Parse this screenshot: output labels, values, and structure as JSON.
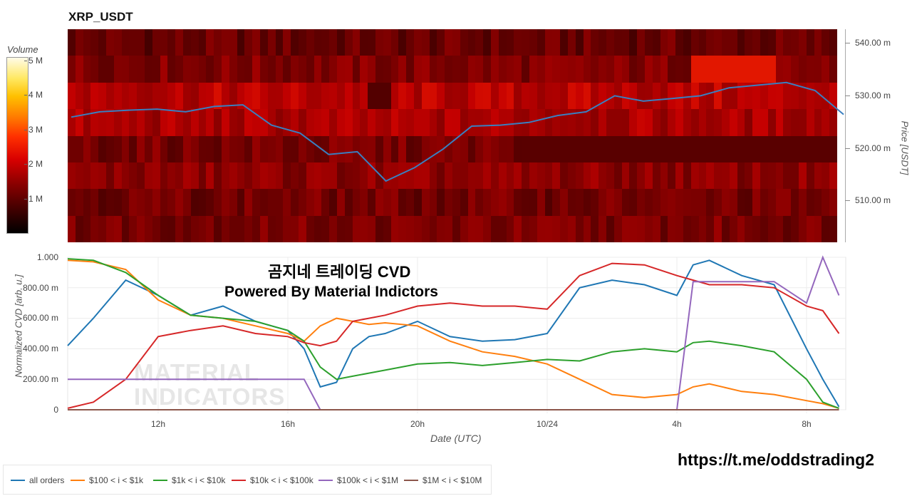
{
  "title": "XRP_USDT",
  "overlay_text": {
    "line1": "곰지네 트레이딩 CVD",
    "line2": "Powered By Material Indictors"
  },
  "url_text": "https://t.me/oddstrading2",
  "watermark": {
    "line1": "MATERIAL",
    "line2": "INDICATORS"
  },
  "colorbar": {
    "title": "Volume",
    "ticks": [
      "5 M",
      "4 M",
      "3 M",
      "2 M",
      "1 M"
    ]
  },
  "colors": {
    "price_line": "#3a7fc0",
    "all_orders": "#1f77b4",
    "r100_1k": "#ff7f0e",
    "r1k_10k": "#2ca02c",
    "r10k_100k": "#d62728",
    "r100k_1m": "#9467bd",
    "r1m_10m": "#8c564b"
  },
  "chart_data": [
    {
      "type": "heatmap",
      "title": "XRP_USDT",
      "ylabel": "Price [USDT]",
      "y_ticks": [
        "540.00 m",
        "530.00 m",
        "520.00 m",
        "510.00 m"
      ],
      "y_tick_values": [
        0.54,
        0.53,
        0.52,
        0.51
      ],
      "ylim": [
        0.502,
        0.542
      ],
      "colorbar_label": "Volume",
      "colorbar_ticks": [
        "5 M",
        "4 M",
        "3 M",
        "2 M",
        "1 M"
      ],
      "price_series": {
        "x": [
          "2023-10-23 09:00",
          "10:00",
          "11:00",
          "12:00",
          "13:00",
          "14:00",
          "15:00",
          "16:00",
          "16:30",
          "17:00",
          "17:30",
          "18:00",
          "18:30",
          "19:00",
          "20:00",
          "21:00",
          "22:00",
          "23:00",
          "10/24 00:00",
          "01:00",
          "02:00",
          "03:00",
          "04:00",
          "05:00",
          "06:00",
          "07:00",
          "08:00",
          "09:00"
        ],
        "y": [
          0.5255,
          0.5265,
          0.5268,
          0.527,
          0.5265,
          0.5275,
          0.5278,
          0.524,
          0.5225,
          0.5185,
          0.519,
          0.5135,
          0.516,
          0.5195,
          0.5238,
          0.524,
          0.5245,
          0.5258,
          0.5265,
          0.5295,
          0.5285,
          0.529,
          0.5295,
          0.531,
          0.5315,
          0.532,
          0.5305,
          0.526
        ]
      }
    },
    {
      "type": "line",
      "xlabel": "Date (UTC)",
      "ylabel": "Normalized CVD [arb. u.]",
      "y_ticks": [
        "1.000",
        "800.00 m",
        "600.00 m",
        "400.00 m",
        "200.00 m",
        "0"
      ],
      "ylim": [
        0,
        1
      ],
      "x_ticks": [
        "12h",
        "16h",
        "20h",
        "10/24",
        "4h",
        "8h"
      ],
      "x": [
        9,
        10,
        11,
        12,
        13,
        14,
        15,
        16,
        16.5,
        17,
        17.5,
        18,
        18.5,
        19,
        20,
        21,
        22,
        23,
        24,
        25,
        26,
        27,
        28,
        28.5,
        29,
        30,
        31,
        32,
        32.5,
        33
      ],
      "series": [
        {
          "name": "all orders",
          "values": [
            0.42,
            0.6,
            0.85,
            0.75,
            0.62,
            0.68,
            0.58,
            0.52,
            0.4,
            0.15,
            0.18,
            0.4,
            0.48,
            0.5,
            0.58,
            0.48,
            0.45,
            0.46,
            0.5,
            0.8,
            0.85,
            0.82,
            0.75,
            0.95,
            0.98,
            0.88,
            0.82,
            0.4,
            0.2,
            0.02
          ]
        },
        {
          "name": "$100 < i < $1k",
          "values": [
            0.98,
            0.97,
            0.92,
            0.72,
            0.62,
            0.6,
            0.55,
            0.5,
            0.45,
            0.55,
            0.6,
            0.58,
            0.56,
            0.57,
            0.55,
            0.45,
            0.38,
            0.35,
            0.3,
            0.2,
            0.1,
            0.08,
            0.1,
            0.15,
            0.17,
            0.12,
            0.1,
            0.06,
            0.04,
            0.01
          ]
        },
        {
          "name": "$1k < i < $10k",
          "values": [
            0.99,
            0.98,
            0.9,
            0.75,
            0.62,
            0.6,
            0.58,
            0.52,
            0.45,
            0.28,
            0.2,
            0.22,
            0.24,
            0.26,
            0.3,
            0.31,
            0.29,
            0.31,
            0.33,
            0.32,
            0.38,
            0.4,
            0.38,
            0.44,
            0.45,
            0.42,
            0.38,
            0.2,
            0.05,
            0.01
          ]
        },
        {
          "name": "$10k < i < $100k",
          "values": [
            0.01,
            0.05,
            0.2,
            0.48,
            0.52,
            0.55,
            0.5,
            0.48,
            0.44,
            0.42,
            0.45,
            0.58,
            0.6,
            0.62,
            0.68,
            0.7,
            0.68,
            0.68,
            0.66,
            0.88,
            0.96,
            0.95,
            0.88,
            0.85,
            0.82,
            0.82,
            0.8,
            0.68,
            0.65,
            0.5
          ]
        },
        {
          "name": "$100k < i < $1M",
          "values": [
            0.2,
            0.2,
            0.2,
            0.2,
            0.2,
            0.2,
            0.2,
            0.2,
            0.2,
            0.0,
            0.0,
            0.0,
            0.0,
            0.0,
            0.0,
            0.0,
            0.0,
            0.0,
            0.0,
            0.0,
            0.0,
            0.0,
            0.0,
            0.84,
            0.84,
            0.84,
            0.84,
            0.7,
            1.0,
            0.75
          ]
        },
        {
          "name": "$1M < i < $10M",
          "values": [
            0,
            0,
            0,
            0,
            0,
            0,
            0,
            0,
            0,
            0,
            0,
            0,
            0,
            0,
            0,
            0,
            0,
            0,
            0,
            0,
            0,
            0,
            0,
            0,
            0,
            0,
            0,
            0,
            0,
            0
          ]
        }
      ]
    }
  ]
}
